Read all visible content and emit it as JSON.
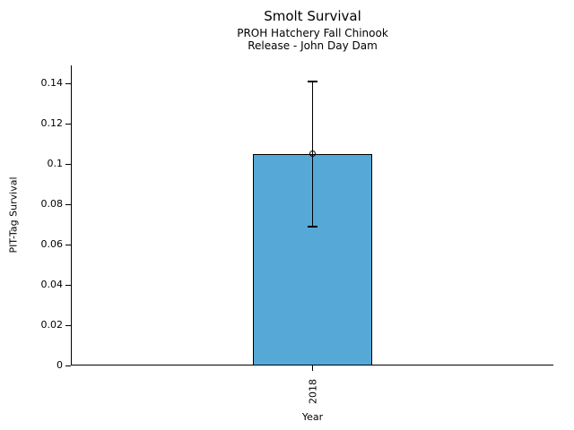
{
  "header": {
    "title": "Smolt Survival",
    "subtitle1": "PROH Hatchery Fall Chinook",
    "subtitle2": "Release - John Day Dam"
  },
  "chart_data": {
    "type": "bar",
    "title": "Smolt Survival",
    "subtitle": [
      "PROH Hatchery Fall Chinook",
      "Release - John Day Dam"
    ],
    "categories": [
      "2018"
    ],
    "values": [
      0.105
    ],
    "error_bars": [
      {
        "lower": 0.069,
        "upper": 0.141
      }
    ],
    "xlabel": "Year",
    "ylabel": "PIT-Tag Survival",
    "ylim": [
      0,
      0.149
    ],
    "yticks": [
      0,
      0.02,
      0.04,
      0.06,
      0.08,
      0.1,
      0.12,
      0.14
    ],
    "ytick_labels": [
      "0",
      "0.02",
      "0.04",
      "0.06",
      "0.08",
      "0.1",
      "0.12",
      "0.14"
    ],
    "xtick_rotation": 90,
    "grid": false,
    "legend": false,
    "marker": "open-circle",
    "colors": {
      "bar_fill": "#56A9D6",
      "bar_edge": "#000000",
      "axis": "#000000",
      "text": "#000000",
      "background": "#ffffff"
    }
  }
}
